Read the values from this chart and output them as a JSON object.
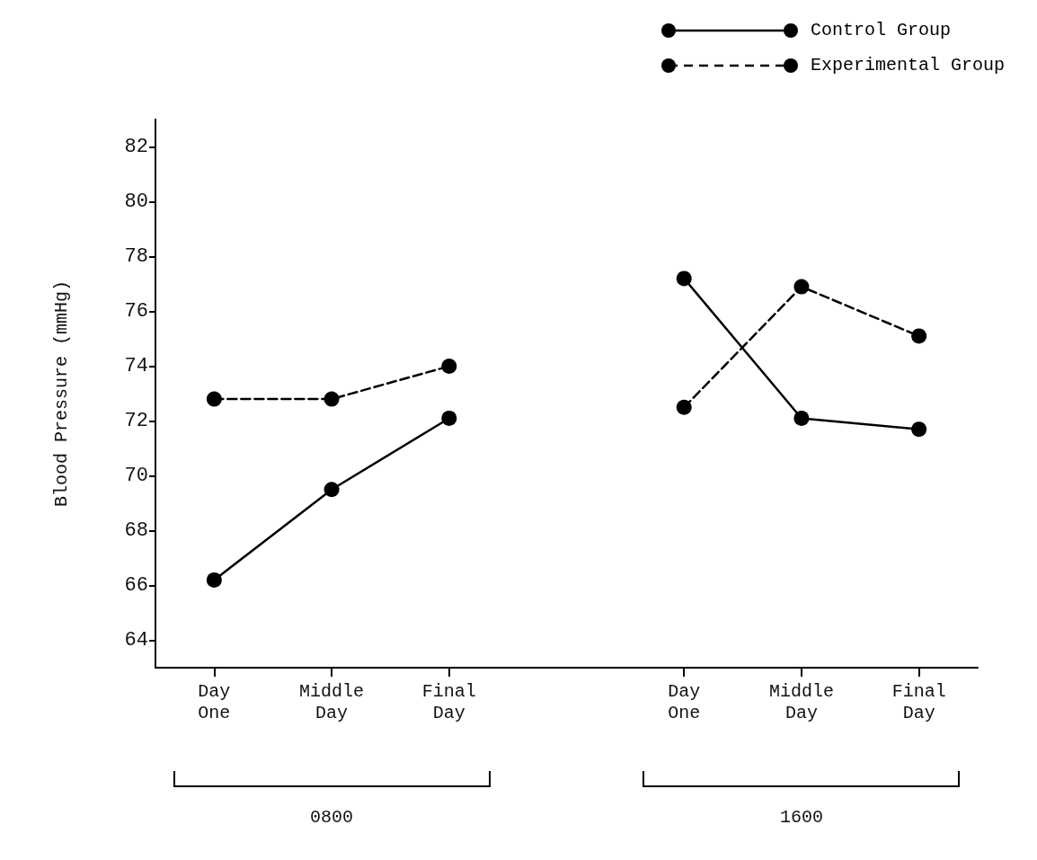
{
  "chart_data": {
    "type": "line",
    "ylabel": "Blood Pressure (mmHg)",
    "categories": [
      "Day One",
      "Middle Day",
      "Final Day",
      null,
      "Day One",
      "Middle Day",
      "Final Day"
    ],
    "series": [
      {
        "name": "Control Group",
        "color": "#000000",
        "line_style": "solid",
        "values": [
          66.2,
          69.5,
          72.1,
          null,
          77.2,
          72.1,
          71.7
        ]
      },
      {
        "name": "Experimental Group",
        "color": "#000000",
        "line_style": "dashed",
        "values": [
          72.8,
          72.8,
          74.0,
          null,
          72.5,
          76.9,
          75.1
        ]
      }
    ],
    "ylim": [
      63,
      83
    ],
    "yticks": [
      64,
      66,
      68,
      70,
      72,
      74,
      76,
      78,
      80,
      82
    ],
    "grid": false,
    "legend": "top right",
    "marker": "circle",
    "annotations": [
      "0800",
      "1600"
    ]
  }
}
